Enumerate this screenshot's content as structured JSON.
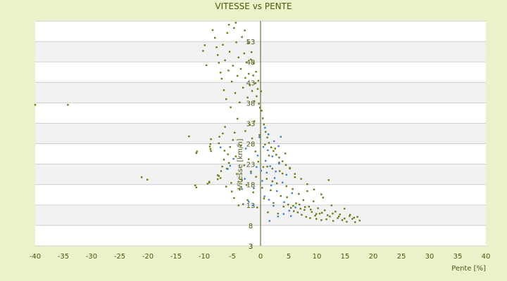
{
  "chart_data": {
    "type": "scatter",
    "title": "VITESSE vs PENTE",
    "xlabel": "Pente [%]",
    "ylabel": "Vitesse [km/h]",
    "xlim": [
      -40,
      40
    ],
    "ylim": [
      3,
      58
    ],
    "x_ticks": [
      "-40",
      "-35",
      "-30",
      "-25",
      "-20",
      "-15",
      "-10",
      "-5",
      "0",
      "5",
      "10",
      "15",
      "20",
      "25",
      "30",
      "35",
      "40"
    ],
    "y_ticks": [
      {
        "value": 3,
        "label": "3"
      },
      {
        "value": 8,
        "label": "8"
      },
      {
        "value": 13,
        "label": "13"
      },
      {
        "value": 18,
        "label": "18"
      },
      {
        "value": 23,
        "label": "23"
      },
      {
        "value": 28,
        "label": "28"
      },
      {
        "value": 33,
        "label": "33"
      },
      {
        "value": 38,
        "label": "38"
      },
      {
        "value": 43,
        "label": "43"
      },
      {
        "value": 48,
        "label": "48"
      },
      {
        "value": 53,
        "label": "53"
      }
    ],
    "y_axis_bottom_label": "3",
    "grid": true,
    "colors": {
      "background": "#ebf1c9",
      "plot": "#ffffff",
      "band": "#f2f2f2",
      "grid": "#d0d0d0",
      "axis": "#4b5a12",
      "series_a": "#6b7a10",
      "series_b": "#3a7fd5"
    },
    "series": [
      {
        "color": "#6b7a10",
        "points": [
          [
            -40,
            37.5
          ],
          [
            -34.2,
            37.5
          ],
          [
            -21.1,
            19.8
          ],
          [
            -20.1,
            19.2
          ],
          [
            -12.7,
            29.8
          ],
          [
            -11.6,
            17.8
          ],
          [
            -11.4,
            17.3
          ],
          [
            -11.4,
            25.7
          ],
          [
            -11.3,
            26.1
          ],
          [
            -9.4,
            18.2
          ],
          [
            -9.1,
            18.5
          ],
          [
            -9.1,
            18.7
          ],
          [
            -9,
            27.3
          ],
          [
            -8.9,
            26.7
          ],
          [
            -8.9,
            27.9
          ],
          [
            -8.8,
            26.2
          ],
          [
            -8.8,
            29.1
          ],
          [
            -7.6,
            19.3
          ],
          [
            -7.6,
            20.3
          ],
          [
            -7.4,
            28.1
          ],
          [
            -7.4,
            20.1
          ],
          [
            -7.3,
            29.7
          ],
          [
            -7.1,
            19.6
          ],
          [
            -7,
            21.3
          ],
          [
            -6.8,
            22.4
          ],
          [
            -6.7,
            30.5
          ],
          [
            -6.5,
            24.1
          ],
          [
            -6.4,
            26.3
          ],
          [
            -6.3,
            32.1
          ],
          [
            -6.1,
            17.5
          ],
          [
            -6,
            21.9
          ],
          [
            -5.8,
            25.4
          ],
          [
            -5.6,
            23.3
          ],
          [
            -5.4,
            27.2
          ],
          [
            -5.2,
            18.4
          ],
          [
            -5.1,
            16.3
          ],
          [
            -4.9,
            28.9
          ],
          [
            -4.7,
            14.7
          ],
          [
            -4.6,
            30.7
          ],
          [
            -4.4,
            24.9
          ],
          [
            -4.2,
            20.6
          ],
          [
            -4.1,
            34.1
          ],
          [
            -3.9,
            12.9
          ],
          [
            -3.7,
            16.8
          ],
          [
            -3.5,
            27.5
          ],
          [
            -3.3,
            19.1
          ],
          [
            -3.1,
            13.2
          ],
          [
            -2.9,
            22.7
          ],
          [
            -2.7,
            31.1
          ],
          [
            -2.5,
            17.9
          ],
          [
            -2.3,
            14.2
          ],
          [
            -2.1,
            24.2
          ],
          [
            -1.9,
            32.6
          ],
          [
            -1.7,
            21.2
          ],
          [
            -1.5,
            29.3
          ],
          [
            -1.3,
            16.1
          ],
          [
            -1.1,
            33.5
          ],
          [
            -0.9,
            26.1
          ],
          [
            -0.8,
            19.9
          ],
          [
            -0.6,
            12.4
          ],
          [
            -0.4,
            23.6
          ],
          [
            -0.2,
            30.1
          ],
          [
            -0.1,
            36.8
          ],
          [
            0.3,
            17.2
          ],
          [
            0.5,
            22.3
          ],
          [
            0.6,
            14.6
          ],
          [
            0.8,
            27.8
          ],
          [
            1.1,
            19.4
          ],
          [
            1.3,
            11.2
          ],
          [
            1.5,
            25.1
          ],
          [
            1.8,
            16.6
          ],
          [
            2.1,
            21.9
          ],
          [
            2.3,
            13.5
          ],
          [
            2.6,
            26.8
          ],
          [
            2.9,
            18.3
          ],
          [
            3.1,
            10.9
          ],
          [
            3.3,
            23.4
          ],
          [
            3.6,
            15.2
          ],
          [
            3.9,
            20.7
          ],
          [
            4.1,
            12.6
          ],
          [
            4.4,
            25.6
          ],
          [
            4.6,
            17.6
          ],
          [
            4.9,
            13.1
          ],
          [
            5.2,
            22.1
          ],
          [
            5.4,
            12.3
          ],
          [
            5.7,
            16.9
          ],
          [
            5.9,
            11.5
          ],
          [
            6.1,
            19.8
          ],
          [
            6.3,
            13.4
          ],
          [
            6.6,
            11.2
          ],
          [
            6.8,
            15.7
          ],
          [
            7.1,
            12.1
          ],
          [
            7.3,
            10.6
          ],
          [
            7.6,
            14.2
          ],
          [
            7.8,
            11.8
          ],
          [
            8.1,
            10.1
          ],
          [
            8.3,
            16.4
          ],
          [
            8.6,
            12.6
          ],
          [
            8.8,
            9.8
          ],
          [
            9.1,
            11.3
          ],
          [
            9.4,
            13.9
          ],
          [
            9.7,
            10.4
          ],
          [
            9.9,
            9.6
          ],
          [
            10.2,
            12.2
          ],
          [
            10.5,
            10.9
          ],
          [
            10.8,
            9.3
          ],
          [
            11.1,
            14.8
          ],
          [
            11.4,
            11.7
          ],
          [
            11.7,
            9.5
          ],
          [
            12.1,
            19.1
          ],
          [
            12.3,
            10.2
          ],
          [
            12.6,
            12.9
          ],
          [
            12.9,
            9.1
          ],
          [
            13.3,
            11.4
          ],
          [
            13.7,
            9.8
          ],
          [
            14.1,
            10.7
          ],
          [
            14.5,
            9.3
          ],
          [
            14.9,
            12.1
          ],
          [
            15.3,
            8.9
          ],
          [
            15.8,
            10.3
          ],
          [
            16.3,
            9.6
          ],
          [
            16.8,
            8.8
          ],
          [
            17.2,
            10.1
          ],
          [
            17.6,
            9.2
          ],
          [
            -8.1,
            53.9
          ],
          [
            -7.8,
            51.6
          ],
          [
            -7.6,
            49.7
          ],
          [
            -7.4,
            47.8
          ],
          [
            -7.1,
            45.4
          ],
          [
            -6.9,
            43.9
          ],
          [
            -6.7,
            52.2
          ],
          [
            -6.5,
            41.1
          ],
          [
            -6.3,
            48.4
          ],
          [
            -6.1,
            38.9
          ],
          [
            -5.9,
            55.1
          ],
          [
            -5.7,
            45.9
          ],
          [
            -5.5,
            50.5
          ],
          [
            -5.3,
            36.9
          ],
          [
            -5.1,
            43.2
          ],
          [
            -4.9,
            47.1
          ],
          [
            -4.7,
            56.3
          ],
          [
            -4.5,
            40.4
          ],
          [
            -4.3,
            52.8
          ],
          [
            -4.1,
            44.6
          ],
          [
            -3.9,
            49.1
          ],
          [
            -3.7,
            38.1
          ],
          [
            -3.5,
            46.3
          ],
          [
            -3.3,
            54.1
          ],
          [
            -3.1,
            41.7
          ],
          [
            -2.9,
            50.1
          ],
          [
            -2.7,
            44.1
          ],
          [
            -2.5,
            47.9
          ],
          [
            -2.3,
            39.3
          ],
          [
            -2.1,
            45.1
          ],
          [
            -1.9,
            42.3
          ],
          [
            -1.7,
            48.6
          ],
          [
            -1.5,
            40.9
          ],
          [
            -1.3,
            44.7
          ],
          [
            -1.1,
            38.4
          ],
          [
            -0.9,
            42.8
          ],
          [
            -0.7,
            39.6
          ],
          [
            -0.5,
            41.4
          ],
          [
            -0.3,
            37.8
          ],
          [
            0.2,
            36.1
          ],
          [
            0.4,
            34.2
          ],
          [
            0.6,
            32.7
          ],
          [
            0.9,
            30.9
          ],
          [
            1.2,
            29.5
          ],
          [
            1.5,
            28.2
          ],
          [
            1.9,
            27.1
          ],
          [
            2.3,
            26.2
          ],
          [
            2.8,
            25.3
          ],
          [
            3.3,
            24.6
          ],
          [
            3.9,
            23.7
          ],
          [
            4.5,
            22.8
          ],
          [
            5.2,
            21.9
          ],
          [
            6.1,
            20.6
          ],
          [
            7.2,
            19.4
          ],
          [
            8.3,
            18.1
          ],
          [
            9.5,
            16.8
          ],
          [
            10.8,
            15.6
          ],
          [
            -9.9,
            52.1
          ],
          [
            -10.2,
            50.7
          ],
          [
            -8.5,
            55.8
          ],
          [
            -9.6,
            47.2
          ],
          [
            -5.6,
            57.1
          ],
          [
            -4.4,
            57.6
          ],
          [
            -2.8,
            55.7
          ],
          [
            -2.2,
            52.7
          ],
          [
            -1.6,
            50.4
          ],
          [
            -1.2,
            47.7
          ],
          [
            -0.8,
            45.6
          ],
          [
            -0.4,
            43.4
          ],
          [
            0.1,
            40.8
          ],
          [
            1.2,
            22.4
          ],
          [
            2.1,
            18.8
          ],
          [
            3.4,
            21.3
          ],
          [
            4.7,
            14.9
          ],
          [
            5.8,
            12.8
          ],
          [
            6.9,
            13.1
          ],
          [
            7.9,
            12.5
          ],
          [
            8.9,
            11.9
          ],
          [
            9.9,
            10.8
          ],
          [
            10.9,
            11.1
          ],
          [
            11.9,
            10.5
          ],
          [
            12.8,
            10.9
          ],
          [
            13.9,
            10.2
          ],
          [
            14.9,
            9.7
          ],
          [
            15.9,
            10.6
          ],
          [
            16.6,
            9.9
          ]
        ]
      },
      {
        "color": "#3a7fd5",
        "points": [
          [
            -7.1,
            27.1
          ],
          [
            -5.8,
            21.8
          ],
          [
            -5.4,
            22.6
          ],
          [
            -4.8,
            24.3
          ],
          [
            -3.3,
            16.9
          ],
          [
            -2.8,
            19.4
          ],
          [
            -2.1,
            13.8
          ],
          [
            -1.7,
            20.8
          ],
          [
            -1.2,
            17.1
          ],
          [
            -0.7,
            22.3
          ],
          [
            -0.5,
            25.1
          ],
          [
            -0.2,
            29.6
          ],
          [
            0.1,
            21.4
          ],
          [
            0.3,
            18.9
          ],
          [
            0.5,
            27.2
          ],
          [
            0.7,
            15.1
          ],
          [
            0.9,
            23.8
          ],
          [
            1.1,
            20.9
          ],
          [
            1.3,
            26.4
          ],
          [
            1.5,
            14.3
          ],
          [
            1.7,
            22.5
          ],
          [
            1.9,
            17.8
          ],
          [
            2.1,
            24.9
          ],
          [
            2.3,
            12.8
          ],
          [
            2.5,
            19.6
          ],
          [
            2.7,
            21.2
          ],
          [
            2.9,
            16.4
          ],
          [
            3.1,
            10.2
          ],
          [
            3.3,
            23.1
          ],
          [
            3.6,
            29.7
          ],
          [
            3.9,
            18.5
          ],
          [
            4.2,
            13.7
          ],
          [
            4.6,
            20.4
          ],
          [
            5.1,
            11.6
          ],
          [
            5.6,
            15.9
          ],
          [
            6.2,
            12.4
          ],
          [
            0.8,
            31.9
          ],
          [
            1.4,
            30.3
          ],
          [
            2.4,
            28.6
          ],
          [
            3.2,
            27.4
          ],
          [
            1.6,
            9.1
          ],
          [
            4.1,
            10.8
          ],
          [
            5.4,
            10.3
          ],
          [
            -1.4,
            12.9
          ],
          [
            -2.6,
            26.8
          ]
        ]
      }
    ]
  }
}
